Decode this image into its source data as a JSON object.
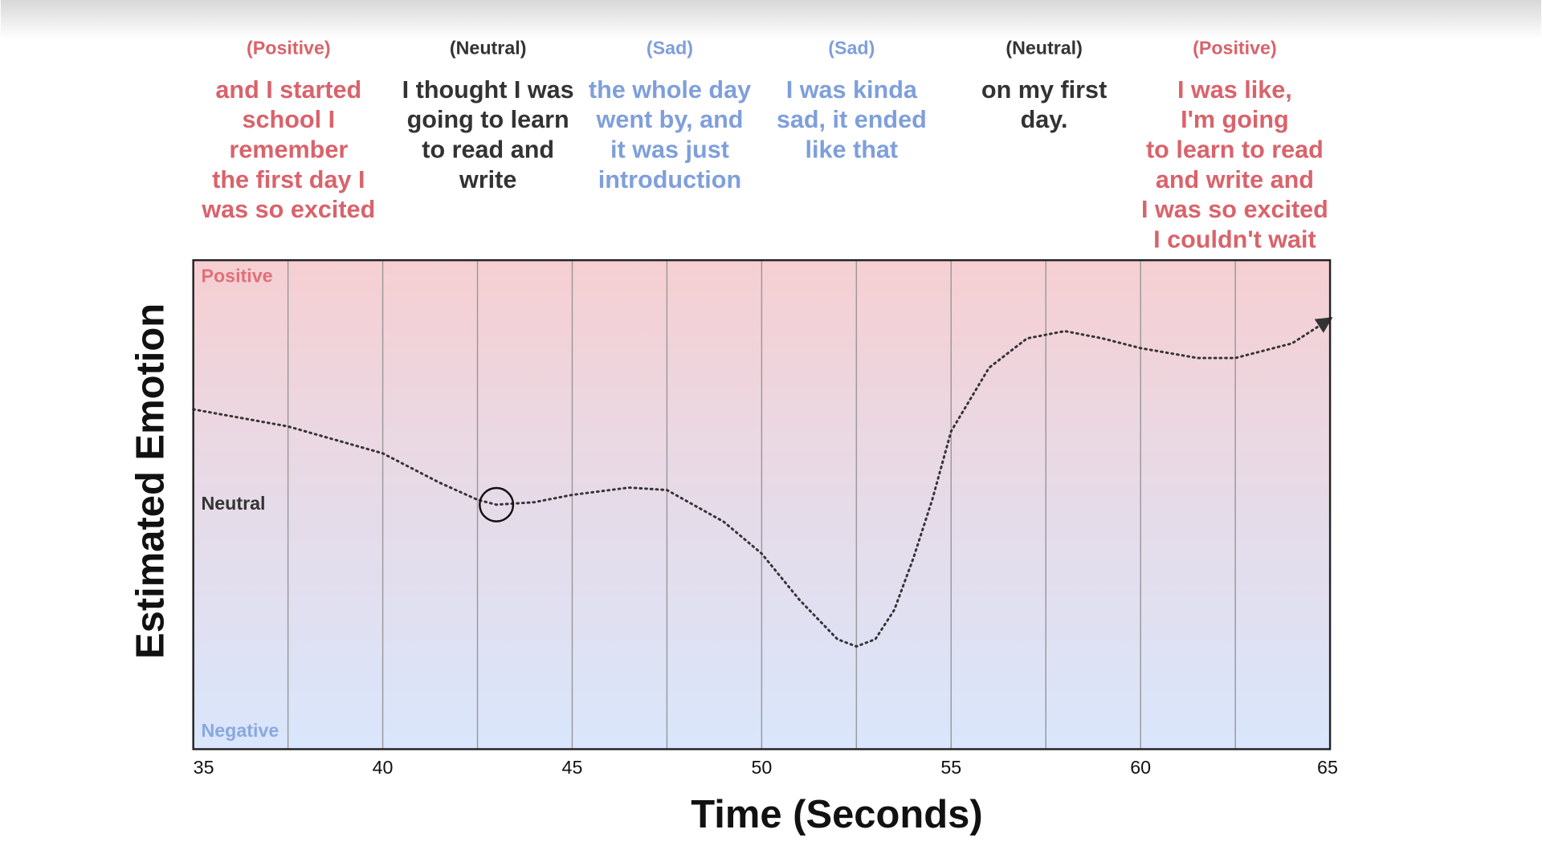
{
  "chart_data": {
    "type": "line",
    "xlabel": "Time (Seconds)",
    "ylabel": "Estimated Emotion",
    "xlim": [
      35,
      65
    ],
    "xticks": [
      35,
      40,
      45,
      50,
      55,
      60,
      65
    ],
    "xgrid": [
      37.5,
      40,
      42.5,
      45,
      47.5,
      50,
      52.5,
      55,
      57.5,
      60,
      62.5
    ],
    "ylim": [
      -1,
      1
    ],
    "yticks": [
      {
        "value": 0.93,
        "label": "Positive",
        "color": "#e0707a"
      },
      {
        "value": 0,
        "label": "Neutral",
        "color": "#333333"
      },
      {
        "value": -0.93,
        "label": "Negative",
        "color": "#8aa8e0"
      }
    ],
    "series": [
      {
        "color": "#333333",
        "x": [
          35,
          37.5,
          40,
          41.5,
          42.5,
          43,
          44,
          45,
          46.5,
          47.5,
          49,
          50,
          51,
          52,
          52.5,
          53,
          53.5,
          54,
          54.5,
          55,
          56,
          57,
          58,
          59,
          60,
          61.5,
          62.5,
          64,
          65
        ],
        "values": [
          0.39,
          0.32,
          0.21,
          0.09,
          0.02,
          0.0,
          0.01,
          0.04,
          0.07,
          0.06,
          -0.07,
          -0.2,
          -0.39,
          -0.55,
          -0.58,
          -0.55,
          -0.43,
          -0.22,
          0.02,
          0.3,
          0.56,
          0.68,
          0.71,
          0.68,
          0.64,
          0.6,
          0.6,
          0.66,
          0.76
        ]
      }
    ],
    "highlight": {
      "x": 43,
      "y": 0
    },
    "annotations": [
      {
        "label": "(Positive)",
        "color": "#d9636b",
        "lines": [
          "and I started",
          "school I",
          "remember",
          "the first day I",
          "was so excited"
        ]
      },
      {
        "label": "(Neutral)",
        "color": "#333333",
        "lines": [
          "I thought I was",
          "going to learn",
          "to read and",
          "write"
        ]
      },
      {
        "label": "(Sad)",
        "color": "#7f9fdb",
        "lines": [
          "the whole day",
          "went by, and",
          "it was just",
          "introduction"
        ]
      },
      {
        "label": "(Sad)",
        "color": "#7f9fdb",
        "lines": [
          "I was kinda",
          "sad, it ended",
          "like that"
        ]
      },
      {
        "label": "(Neutral)",
        "color": "#333333",
        "lines": [
          "on my first",
          "day."
        ]
      },
      {
        "label": "(Positive)",
        "color": "#d9636b",
        "lines": [
          "I was like,",
          "I'm going",
          "to learn to read",
          "and write and",
          "I was so excited",
          "I couldn't wait"
        ]
      }
    ]
  }
}
